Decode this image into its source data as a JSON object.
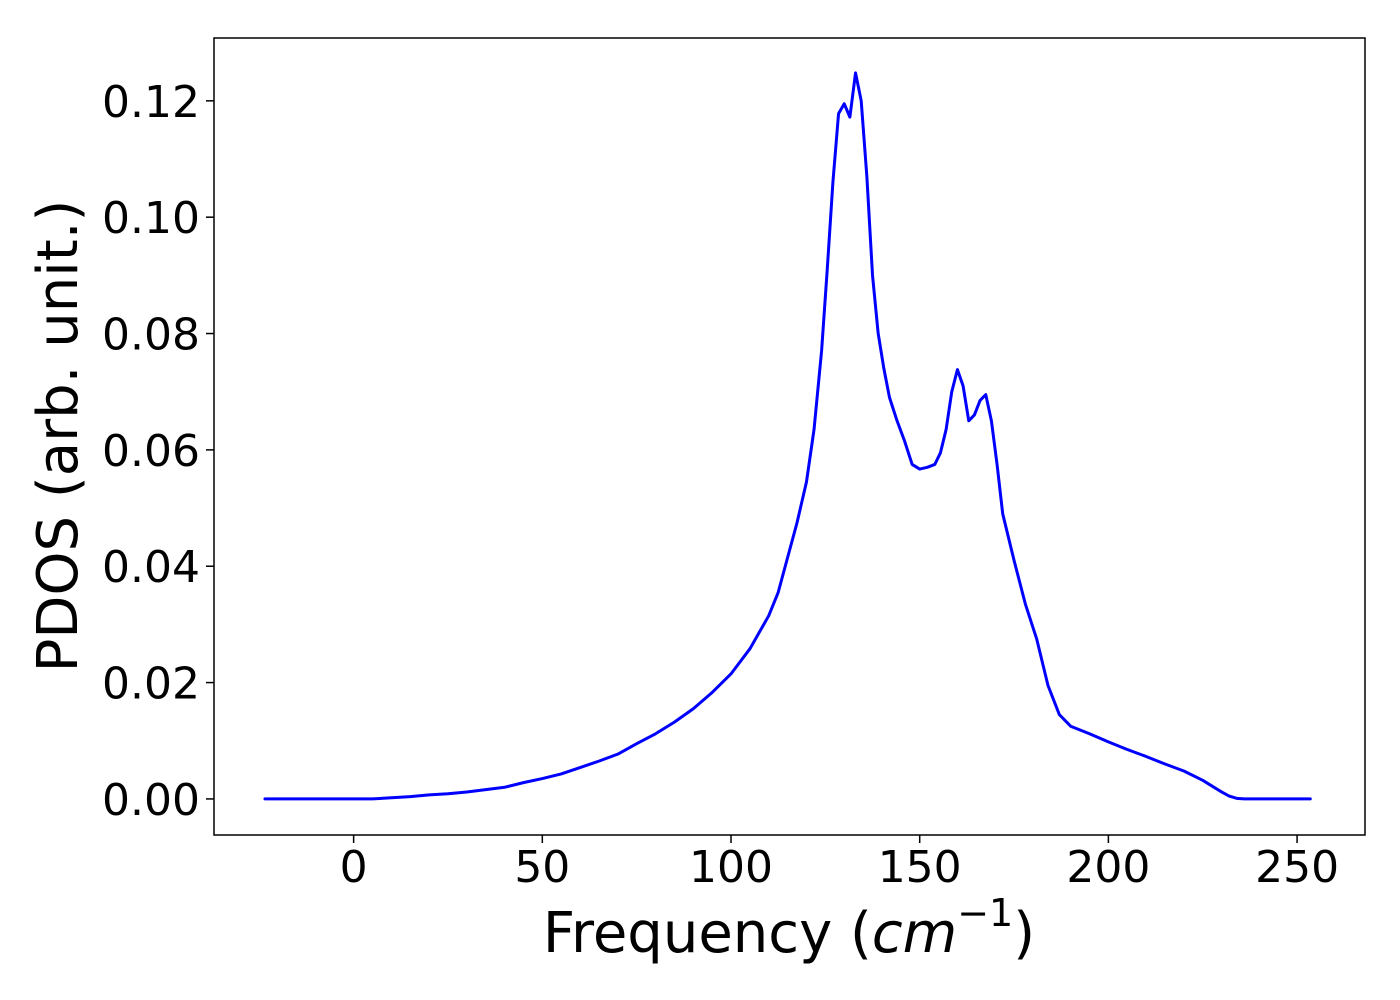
{
  "chart_data": {
    "type": "line",
    "title": "",
    "xlabel": "Frequency (",
    "xlabel_math": "cm",
    "xlabel_sup": "−1",
    "xlabel_close": ")",
    "ylabel": "PDOS (arb. unit.)",
    "xlim": [
      -37,
      268
    ],
    "ylim": [
      -0.0062,
      0.1308
    ],
    "grid": false,
    "line_color": "#0000ff",
    "xticks": [
      0,
      50,
      100,
      150,
      200,
      250
    ],
    "xtick_labels": [
      "0",
      "50",
      "100",
      "150",
      "200",
      "250"
    ],
    "yticks": [
      0.0,
      0.02,
      0.04,
      0.06,
      0.08,
      0.1,
      0.12
    ],
    "ytick_labels": [
      "0.00",
      "0.02",
      "0.04",
      "0.06",
      "0.08",
      "0.10",
      "0.12"
    ],
    "series": [
      {
        "x": [
          -23.5,
          0,
          5,
          10,
          15,
          20,
          25,
          30,
          35,
          40,
          45,
          50,
          55,
          60,
          65,
          70,
          75,
          80,
          85,
          90,
          95,
          100,
          105,
          110,
          112.5,
          115,
          117.5,
          120,
          122,
          124,
          125.5,
          127,
          128.5,
          130,
          131.5,
          133,
          134.5,
          136,
          137.5,
          139,
          140.5,
          142,
          144,
          146,
          148,
          150,
          152,
          154,
          155.5,
          157,
          158.5,
          160,
          161.5,
          163,
          164.5,
          166,
          167.5,
          169,
          170.5,
          172,
          175,
          178,
          181,
          184,
          187,
          190,
          195,
          200,
          205,
          210,
          215,
          220,
          225,
          228,
          230,
          232,
          234,
          236,
          240,
          253.5
        ],
        "y": [
          0.0,
          0.0,
          0.0,
          0.0002,
          0.0004,
          0.0007,
          0.0009,
          0.0012,
          0.0016,
          0.002,
          0.0028,
          0.0035,
          0.0043,
          0.0054,
          0.0065,
          0.0077,
          0.0095,
          0.0112,
          0.0132,
          0.0155,
          0.0183,
          0.0215,
          0.0258,
          0.0315,
          0.0355,
          0.0415,
          0.0475,
          0.0545,
          0.0635,
          0.077,
          0.091,
          0.106,
          0.1178,
          0.1195,
          0.1172,
          0.1248,
          0.12,
          0.107,
          0.09,
          0.08,
          0.074,
          0.069,
          0.065,
          0.0615,
          0.0575,
          0.0567,
          0.057,
          0.0575,
          0.0595,
          0.0635,
          0.07,
          0.0738,
          0.071,
          0.065,
          0.066,
          0.0685,
          0.0695,
          0.065,
          0.0575,
          0.049,
          0.041,
          0.0335,
          0.0275,
          0.0195,
          0.0145,
          0.0125,
          0.0112,
          0.0098,
          0.0085,
          0.0073,
          0.006,
          0.0048,
          0.0032,
          0.002,
          0.0012,
          0.0005,
          0.0001,
          0.0,
          0.0,
          0.0
        ]
      }
    ]
  }
}
